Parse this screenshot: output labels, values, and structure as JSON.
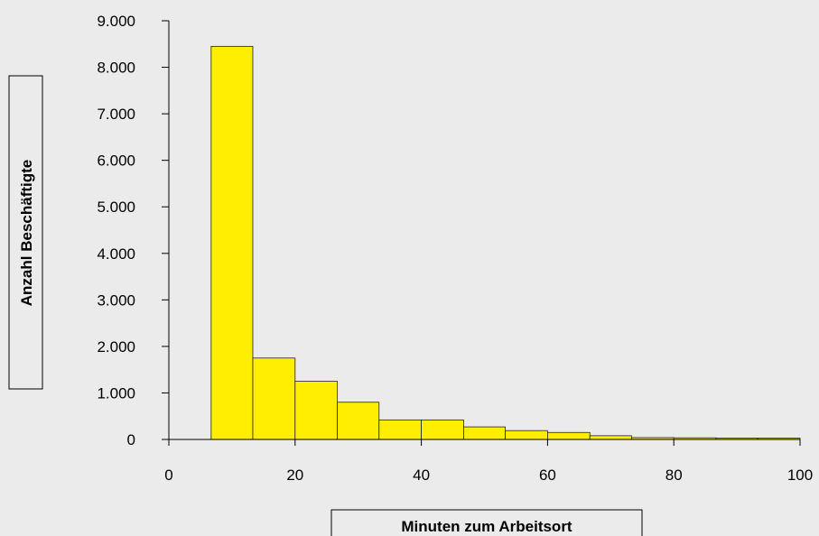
{
  "chart_data": {
    "type": "bar",
    "title": "",
    "xlabel": "Minuten zum Arbeitsort",
    "ylabel": "Anzahl Beschäftigte",
    "xlim": [
      0,
      100
    ],
    "ylim": [
      0,
      9000
    ],
    "x_ticks": [
      0,
      20,
      40,
      60,
      80,
      100
    ],
    "x_tick_labels": [
      "0",
      "20",
      "40",
      "60",
      "80",
      "100"
    ],
    "y_ticks": [
      0,
      1000,
      2000,
      3000,
      4000,
      5000,
      6000,
      7000,
      8000,
      9000
    ],
    "y_tick_labels": [
      "0",
      "1.000",
      "2.000",
      "3.000",
      "4.000",
      "5.000",
      "6.000",
      "7.000",
      "8.000",
      "9.000"
    ],
    "grid": false,
    "legend": "none",
    "bar_color": "#ffee00",
    "bins": [
      {
        "x0": 6.7,
        "x1": 13.3,
        "value": 8450
      },
      {
        "x0": 13.3,
        "x1": 20,
        "value": 1750
      },
      {
        "x0": 20,
        "x1": 26.7,
        "value": 1250
      },
      {
        "x0": 26.7,
        "x1": 33.3,
        "value": 800
      },
      {
        "x0": 33.3,
        "x1": 40,
        "value": 420
      },
      {
        "x0": 40,
        "x1": 46.7,
        "value": 420
      },
      {
        "x0": 46.7,
        "x1": 53.3,
        "value": 270
      },
      {
        "x0": 53.3,
        "x1": 60,
        "value": 190
      },
      {
        "x0": 60,
        "x1": 66.7,
        "value": 150
      },
      {
        "x0": 66.7,
        "x1": 73.3,
        "value": 80
      },
      {
        "x0": 73.3,
        "x1": 80,
        "value": 40
      },
      {
        "x0": 80,
        "x1": 86.7,
        "value": 35
      },
      {
        "x0": 86.7,
        "x1": 93.3,
        "value": 30
      },
      {
        "x0": 93.3,
        "x1": 100,
        "value": 30
      }
    ]
  }
}
